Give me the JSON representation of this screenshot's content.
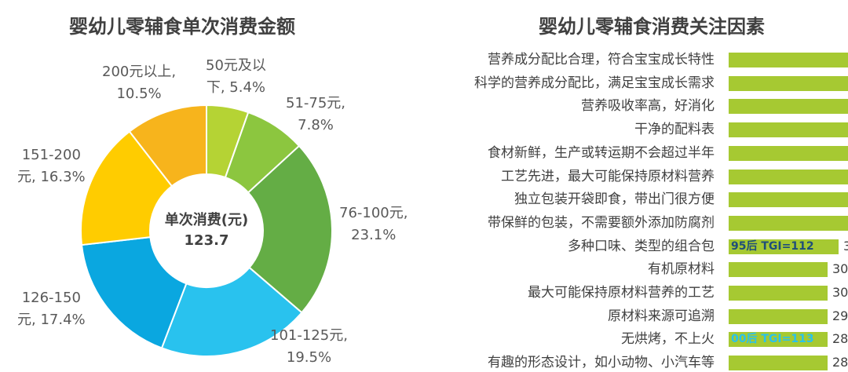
{
  "chart_data": [
    {
      "type": "pie",
      "title": "婴幼儿零辅食单次消费金额",
      "center_label": "单次消费(元)",
      "center_value": "123.7",
      "slices": [
        {
          "label": "50元及以下",
          "value": 5.4,
          "display": "50元及以\n下, 5.4%",
          "color": "#b5d334"
        },
        {
          "label": "51-75元",
          "value": 7.8,
          "display": "51-75元,\n7.8%",
          "color": "#8cc63f"
        },
        {
          "label": "76-100元",
          "value": 23.1,
          "display": "76-100元,\n23.1%",
          "color": "#64ad45"
        },
        {
          "label": "101-125元",
          "value": 19.5,
          "display": "101-125元,\n19.5%",
          "color": "#29c2ee"
        },
        {
          "label": "126-150元",
          "value": 17.4,
          "display": "126-150\n元, 17.4%",
          "color": "#0aa7e0"
        },
        {
          "label": "151-200元",
          "value": 16.3,
          "display": "151-200\n元, 16.3%",
          "color": "#ffcc00"
        },
        {
          "label": "200元以上",
          "value": 10.5,
          "display": "200元以上,\n10.5%",
          "color": "#f7b41c"
        }
      ]
    },
    {
      "type": "bar",
      "title": "婴幼儿零辅食消费关注因素",
      "categories": [
        "营养成分配比合理，符合宝宝成长特性",
        "科学的营养成分配比，满足宝宝成长需求",
        "营养吸收率高，好消化",
        "干净的配料表",
        "食材新鲜，生产或转运期不会超过半年",
        "工艺先进，最大可能保持原材料营养",
        "独立包装开袋即食，带出门很方便",
        "带保鲜的包装，不需要额外添加防腐剂",
        "多种口味、类型的组合包",
        "有机原材料",
        "最大可能保持原材料营养的工艺",
        "原材料来源可追溯",
        "无烘烤，不上火",
        "有趣的形态设计，如小动物、小汽车等"
      ],
      "value_labels": [
        "",
        "",
        "",
        "",
        "",
        "",
        "",
        "",
        "3",
        "30",
        "30",
        "29",
        "28",
        "28"
      ],
      "annotations": [
        {
          "row": 8,
          "text": "95后 TGI=112",
          "color": "#1f4e79"
        },
        {
          "row": 12,
          "text": "00后 TGI=113",
          "color": "#29c2ee"
        }
      ],
      "bar_color": "#a6c932"
    }
  ]
}
